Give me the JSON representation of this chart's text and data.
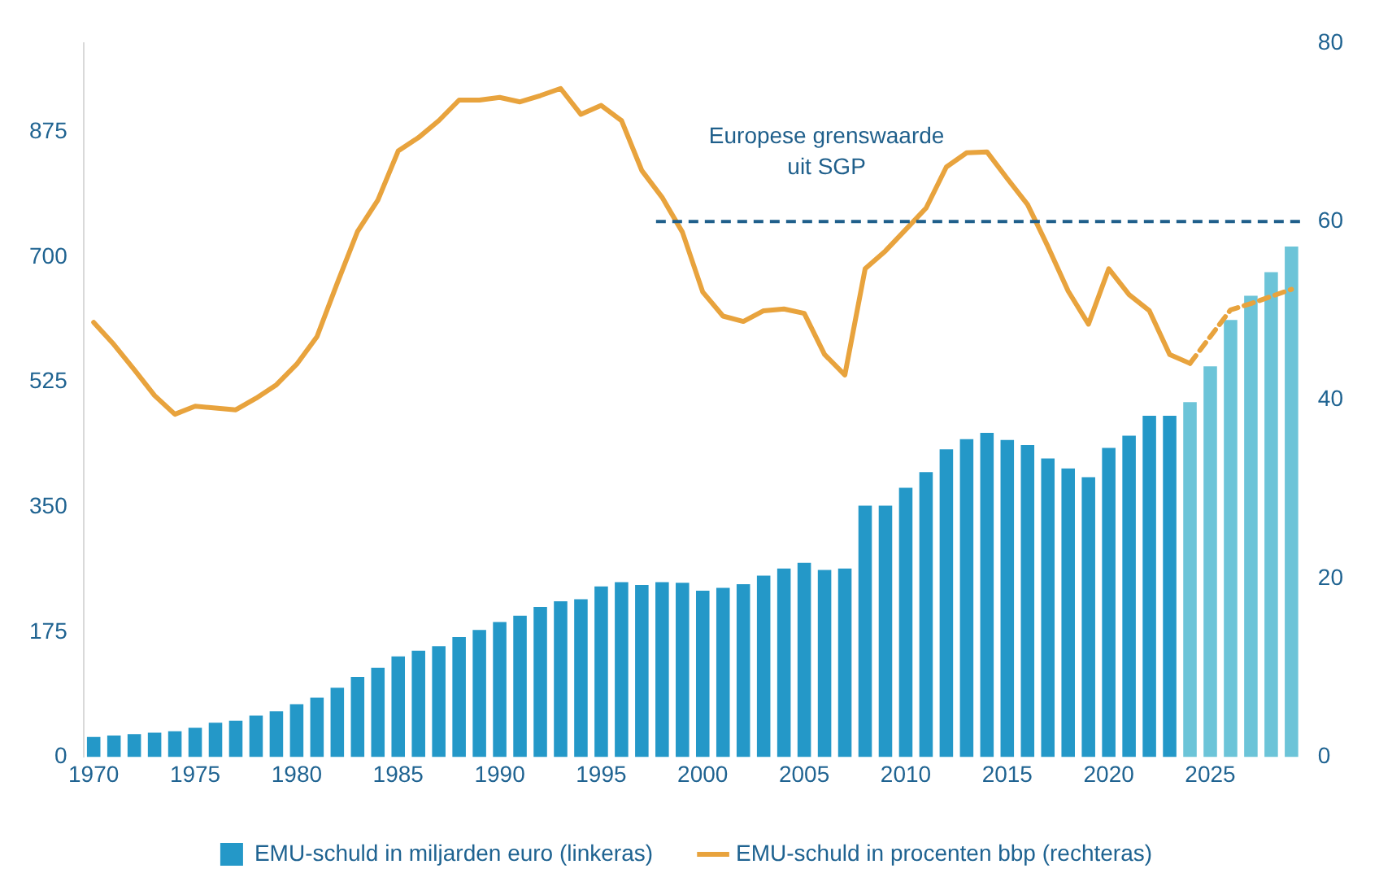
{
  "chart_data": {
    "type": "bar",
    "categories": [
      "1970",
      null,
      null,
      null,
      null,
      "1975",
      null,
      null,
      null,
      null,
      "1980",
      null,
      null,
      null,
      null,
      "1985",
      null,
      null,
      null,
      null,
      "1990",
      null,
      null,
      null,
      null,
      "1995",
      null,
      null,
      null,
      null,
      "2000",
      null,
      null,
      null,
      null,
      "2005",
      null,
      null,
      null,
      null,
      "2010",
      null,
      null,
      null,
      null,
      "2015",
      null,
      null,
      null,
      null,
      "2020",
      null,
      null,
      null,
      null,
      "2025",
      null,
      null,
      null,
      null
    ],
    "series": [
      {
        "name": "EMU-schuld in miljarden euro (linkeras)",
        "colors": [
          "#2498c8",
          "#2498c8",
          "#2498c8",
          "#2498c8",
          "#2498c8",
          "#2498c8",
          "#2498c8",
          "#2498c8",
          "#2498c8",
          "#2498c8",
          "#2498c8",
          "#2498c8",
          "#2498c8",
          "#2498c8",
          "#2498c8",
          "#2498c8",
          "#2498c8",
          "#2498c8",
          "#2498c8",
          "#2498c8",
          "#2498c8",
          "#2498c8",
          "#2498c8",
          "#2498c8",
          "#2498c8",
          "#2498c8",
          "#2498c8",
          "#2498c8",
          "#2498c8",
          "#2498c8",
          "#2498c8",
          "#2498c8",
          "#2498c8",
          "#2498c8",
          "#2498c8",
          "#2498c8",
          "#2498c8",
          "#2498c8",
          "#2498c8",
          "#2498c8",
          "#2498c8",
          "#2498c8",
          "#2498c8",
          "#2498c8",
          "#2498c8",
          "#2498c8",
          "#2498c8",
          "#2498c8",
          "#2498c8",
          "#2498c8",
          "#2498c8",
          "#2498c8",
          "#2498c8",
          "#2498c8",
          "#6cc4d8",
          "#6cc4d8",
          "#6cc4d8",
          "#6cc4d8",
          "#6cc4d8",
          "#6cc4d8"
        ],
        "values": [
          28,
          30,
          32,
          34,
          36,
          41,
          48,
          51,
          58,
          64,
          74,
          83,
          97,
          112,
          125,
          141,
          149,
          155,
          168,
          178,
          189,
          198,
          210,
          218,
          221,
          239,
          245,
          241,
          245,
          244,
          233,
          237,
          242,
          254,
          264,
          272,
          262,
          264,
          352,
          352,
          377,
          399,
          431,
          445,
          454,
          444,
          437,
          418,
          404,
          392,
          433,
          450,
          478,
          478,
          497,
          547,
          612,
          646,
          679,
          715
        ]
      },
      {
        "type": "line",
        "name": "EMU-schuld in procenten bbp (rechteras)",
        "color": "#e8a33d",
        "axis": "y2",
        "line_style": "solid",
        "values": [
          48.7,
          46.2,
          43.4,
          40.5,
          38.4,
          39.3,
          39.1,
          38.9,
          40.2,
          41.7,
          44.0,
          47.1,
          53.1,
          58.9,
          62.4,
          67.9,
          69.4,
          71.3,
          73.6,
          73.6,
          73.9,
          73.4,
          74.1,
          74.9,
          72.0,
          73.0,
          71.3,
          65.7,
          62.7,
          58.8,
          52.1,
          49.4,
          48.8,
          50.0,
          50.2,
          49.7,
          45.1,
          42.8,
          54.7,
          56.7,
          59.1,
          61.5,
          66.1,
          67.7,
          67.8,
          64.8,
          61.9,
          57.2,
          52.2,
          48.5,
          54.7,
          51.8,
          50.0,
          45.1,
          44.1,
          null,
          null,
          null,
          null,
          null
        ]
      },
      {
        "type": "line",
        "color": "#e8a33d",
        "axis": "y2",
        "line_style": "dashed",
        "values": [
          null,
          null,
          null,
          null,
          null,
          null,
          null,
          null,
          null,
          null,
          null,
          null,
          null,
          null,
          null,
          null,
          null,
          null,
          null,
          null,
          null,
          null,
          null,
          null,
          null,
          null,
          null,
          null,
          null,
          null,
          null,
          null,
          null,
          null,
          null,
          null,
          null,
          null,
          null,
          null,
          null,
          null,
          null,
          null,
          null,
          null,
          null,
          null,
          null,
          null,
          null,
          null,
          null,
          null,
          44.1,
          47.1,
          50.1,
          50.8,
          51.6,
          52.4
        ]
      }
    ],
    "ylim": [
      0,
      1000
    ],
    "yticks": [
      0,
      175,
      350,
      525,
      700,
      875
    ],
    "y2lim": [
      0,
      80
    ],
    "y2ticks": [
      0,
      20,
      40,
      60,
      80
    ],
    "ref_lines": [
      {
        "axis": "y2",
        "value": 60,
        "label": "Europese grenswaarde\nuit SGP",
        "color": "#1f5f8b",
        "line_style": "dashed"
      }
    ],
    "grid": false,
    "legend": "bottom",
    "marker": "none"
  }
}
